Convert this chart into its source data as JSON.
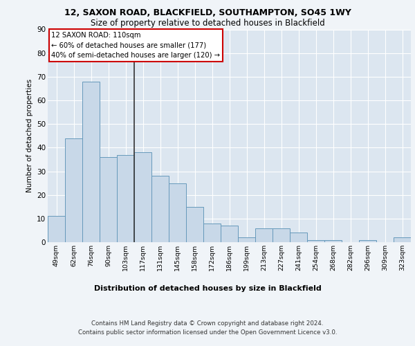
{
  "title1": "12, SAXON ROAD, BLACKFIELD, SOUTHAMPTON, SO45 1WY",
  "title2": "Size of property relative to detached houses in Blackfield",
  "xlabel": "Distribution of detached houses by size in Blackfield",
  "ylabel": "Number of detached properties",
  "categories": [
    "49sqm",
    "62sqm",
    "76sqm",
    "90sqm",
    "103sqm",
    "117sqm",
    "131sqm",
    "145sqm",
    "158sqm",
    "172sqm",
    "186sqm",
    "199sqm",
    "213sqm",
    "227sqm",
    "241sqm",
    "254sqm",
    "268sqm",
    "282sqm",
    "296sqm",
    "309sqm",
    "323sqm"
  ],
  "values": [
    11,
    44,
    68,
    36,
    37,
    38,
    28,
    25,
    15,
    8,
    7,
    2,
    6,
    6,
    4,
    1,
    1,
    0,
    1,
    0,
    2
  ],
  "bar_color": "#c8d8e8",
  "bar_edge_color": "#6699bb",
  "annotation_text_line1": "12 SAXON ROAD: 110sqm",
  "annotation_text_line2": "← 60% of detached houses are smaller (177)",
  "annotation_text_line3": "40% of semi-detached houses are larger (120) →",
  "annotation_box_color": "#ffffff",
  "annotation_box_edge": "#cc0000",
  "vline_color": "#333333",
  "vline_x": 4.5,
  "ylim": [
    0,
    90
  ],
  "yticks": [
    0,
    10,
    20,
    30,
    40,
    50,
    60,
    70,
    80,
    90
  ],
  "background_color": "#dce6f0",
  "grid_color": "#ffffff",
  "fig_bg_color": "#f0f4f8",
  "footer1": "Contains HM Land Registry data © Crown copyright and database right 2024.",
  "footer2": "Contains public sector information licensed under the Open Government Licence v3.0."
}
